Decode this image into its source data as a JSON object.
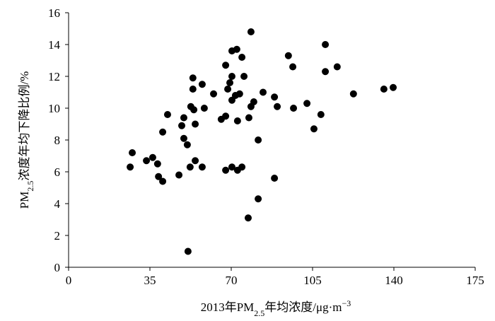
{
  "chart_data": {
    "type": "scatter",
    "xlabel_parts": [
      "2013年PM",
      "2.5",
      "年均浓度/μg·m",
      "−3"
    ],
    "ylabel_parts": [
      "PM",
      "2.5",
      "浓度年均下降比例/%"
    ],
    "color": "#000000",
    "x": [
      26.5,
      27.4,
      33.5,
      36.2,
      38.3,
      38.7,
      40.5,
      40.5,
      42.6,
      47.5,
      48.7,
      49.6,
      49.6,
      51.1,
      51.4,
      52.3,
      52.6,
      53.5,
      53.5,
      53.9,
      54.5,
      54.5,
      57.5,
      57.5,
      58.4,
      62.4,
      65.7,
      67.6,
      67.6,
      67.6,
      68.5,
      69.4,
      70.3,
      70.3,
      70.3,
      70.3,
      71.8,
      72.4,
      72.7,
      72.7,
      73.6,
      74.6,
      74.6,
      75.5,
      77.3,
      77.6,
      78.5,
      78.5,
      79.7,
      81.6,
      81.6,
      83.7,
      88.6,
      88.6,
      89.8,
      94.6,
      96.5,
      96.8,
      102.6,
      105.6,
      108.6,
      110.5,
      110.5,
      115.6,
      122.6,
      135.7,
      139.7
    ],
    "values": [
      6.3,
      7.2,
      6.7,
      6.9,
      6.5,
      5.7,
      5.4,
      8.5,
      9.6,
      5.8,
      8.9,
      9.4,
      8.1,
      7.7,
      1.0,
      6.3,
      10.1,
      11.9,
      11.2,
      9.9,
      9.0,
      6.7,
      11.5,
      6.3,
      10.0,
      10.9,
      9.3,
      12.7,
      9.5,
      6.1,
      11.2,
      11.6,
      13.6,
      12.0,
      10.5,
      6.3,
      10.8,
      13.7,
      9.2,
      6.1,
      10.9,
      13.2,
      6.3,
      12.0,
      3.1,
      9.4,
      14.8,
      10.1,
      10.4,
      8.0,
      4.3,
      11.0,
      10.7,
      5.6,
      10.1,
      13.3,
      12.6,
      10.0,
      10.3,
      8.7,
      9.6,
      14.0,
      12.3,
      12.6,
      10.9,
      11.2,
      11.3
    ],
    "xlim": [
      0,
      175
    ],
    "xticks": [
      0,
      35,
      70,
      105,
      140,
      175
    ],
    "ylim": [
      0,
      16
    ],
    "yticks": [
      0,
      2,
      4,
      6,
      8,
      10,
      12,
      14,
      16
    ],
    "grid": false
  }
}
